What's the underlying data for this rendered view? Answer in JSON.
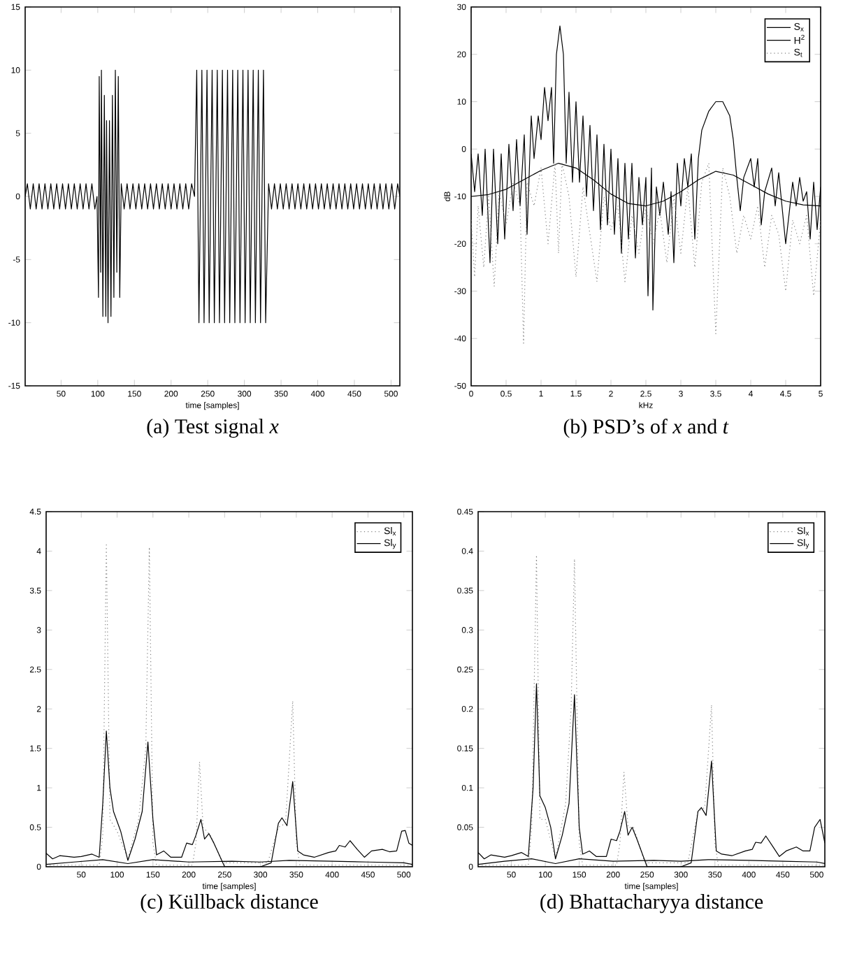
{
  "chart_data": [
    {
      "type": "line",
      "title": "(a) Test signal *x*",
      "xlabel": "time [samples]",
      "xlim": [
        1,
        512
      ],
      "ylim": [
        -15,
        15
      ],
      "xticks": [
        50,
        100,
        150,
        200,
        250,
        300,
        350,
        400,
        450,
        500
      ],
      "yticks": [
        -15,
        -10,
        -5,
        0,
        5,
        10,
        15
      ],
      "marker": "none",
      "series": [
        {
          "color": "#000000",
          "line_style": "solid",
          "x": [
            1,
            4,
            8,
            12,
            16,
            20,
            24,
            28,
            32,
            36,
            40,
            44,
            48,
            52,
            56,
            60,
            64,
            68,
            72,
            76,
            80,
            84,
            88,
            92,
            96,
            99,
            101,
            102,
            104,
            105,
            107,
            109,
            111,
            112,
            114,
            116,
            118,
            120,
            122,
            124,
            126,
            128,
            130,
            132,
            136,
            140,
            144,
            148,
            152,
            156,
            160,
            164,
            168,
            172,
            176,
            180,
            184,
            188,
            192,
            196,
            200,
            204,
            208,
            212,
            216,
            220,
            224,
            228,
            232,
            235,
            238,
            242,
            245,
            249,
            252,
            256,
            259,
            263,
            266,
            270,
            273,
            277,
            280,
            284,
            287,
            291,
            294,
            298,
            301,
            305,
            308,
            312,
            315,
            319,
            322,
            326,
            329,
            333,
            337,
            341,
            345,
            349,
            353,
            357,
            361,
            365,
            369,
            373,
            377,
            381,
            385,
            389,
            393,
            397,
            401,
            405,
            409,
            413,
            417,
            421,
            425,
            429,
            433,
            437,
            441,
            445,
            449,
            453,
            457,
            461,
            465,
            469,
            473,
            477,
            481,
            485,
            489,
            493,
            497,
            501,
            505,
            509,
            512
          ],
          "values": [
            0,
            1,
            -1,
            1,
            -1,
            1,
            -1,
            1,
            -1,
            1,
            -1,
            1,
            -1,
            1,
            -1,
            1,
            -1,
            1,
            -1,
            1,
            -1,
            1,
            -1,
            1,
            -1,
            0,
            -8,
            9.5,
            -6,
            10,
            -9.5,
            8,
            -9.5,
            6,
            -10,
            6,
            -9.5,
            8,
            -8,
            10,
            -6,
            9.5,
            -8,
            1,
            -1,
            1,
            -1,
            1,
            -1,
            1,
            -1,
            1,
            -1,
            1,
            -1,
            1,
            -1,
            1,
            -1,
            1,
            -1,
            1,
            -1,
            1,
            -1,
            1,
            -1,
            1,
            0,
            10,
            -10,
            10,
            -10,
            10,
            -10,
            10,
            -10,
            10,
            -10,
            10,
            -10,
            10,
            -10,
            10,
            -10,
            10,
            -10,
            10,
            -10,
            10,
            -10,
            10,
            -10,
            10,
            -10,
            10,
            -10,
            1,
            -1,
            1,
            -1,
            1,
            -1,
            1,
            -1,
            1,
            -1,
            1,
            -1,
            1,
            -1,
            1,
            -1,
            1,
            -1,
            1,
            -1,
            1,
            -1,
            1,
            -1,
            1,
            -1,
            1,
            -1,
            1,
            -1,
            1,
            -1,
            1,
            -1,
            1,
            -1,
            1,
            -1,
            1,
            -1,
            1,
            -1,
            1,
            -1,
            1,
            0
          ]
        }
      ]
    },
    {
      "type": "line",
      "title": "(b) PSD’s of *x* and *t*",
      "xlabel": "kHz",
      "ylabel": "dB",
      "xlim": [
        0,
        5
      ],
      "ylim": [
        -50,
        30
      ],
      "xticks": [
        0,
        0.5,
        1,
        1.5,
        2,
        2.5,
        3,
        3.5,
        4,
        4.5,
        5
      ],
      "yticks": [
        -50,
        -40,
        -30,
        -20,
        -10,
        0,
        10,
        20,
        30
      ],
      "legend": "top right",
      "marker": "none",
      "series": [
        {
          "name": "S$_{x}$",
          "color": "#000000",
          "line_style": "solid",
          "x": [
            0,
            0.05,
            0.1,
            0.16,
            0.2,
            0.27,
            0.32,
            0.38,
            0.43,
            0.48,
            0.54,
            0.6,
            0.65,
            0.7,
            0.76,
            0.8,
            0.86,
            0.9,
            0.96,
            1.0,
            1.05,
            1.1,
            1.15,
            1.18,
            1.22,
            1.27,
            1.32,
            1.36,
            1.4,
            1.45,
            1.5,
            1.55,
            1.6,
            1.65,
            1.7,
            1.75,
            1.8,
            1.85,
            1.9,
            1.95,
            2.0,
            2.05,
            2.1,
            2.15,
            2.2,
            2.25,
            2.3,
            2.35,
            2.4,
            2.45,
            2.5,
            2.53,
            2.58,
            2.6,
            2.65,
            2.7,
            2.75,
            2.82,
            2.86,
            2.9,
            2.95,
            3.0,
            3.05,
            3.1,
            3.15,
            3.2,
            3.25,
            3.3,
            3.4,
            3.5,
            3.6,
            3.7,
            3.75,
            3.8,
            3.85,
            3.9,
            4.0,
            4.05,
            4.1,
            4.15,
            4.2,
            4.3,
            4.35,
            4.4,
            4.5,
            4.6,
            4.65,
            4.7,
            4.75,
            4.8,
            4.85,
            4.9,
            4.95,
            5.0
          ],
          "values": [
            -1,
            -9,
            -1,
            -14,
            0,
            -24,
            0,
            -20,
            -1,
            -19,
            1,
            -13,
            2,
            -12,
            3,
            -18,
            7,
            -2,
            7,
            2,
            13,
            6,
            13,
            -3,
            20,
            26,
            20,
            -3,
            12,
            -7,
            10,
            -7,
            7,
            -10,
            5,
            -13,
            3,
            -17,
            1,
            -16,
            0,
            -18,
            -2,
            -22,
            -3,
            -19,
            -3,
            -23,
            -6,
            -16,
            -6,
            -31,
            -4,
            -34,
            -8,
            -14,
            -7,
            -18,
            -9,
            -24,
            -3,
            -12,
            -2,
            -8,
            -1,
            -19,
            -2,
            4,
            8,
            10,
            10,
            7,
            2,
            -6,
            -13,
            -6,
            -2,
            -8,
            -2,
            -16,
            -9,
            -4,
            -12,
            -5,
            -20,
            -7,
            -12,
            -6,
            -11,
            -9,
            -19,
            -7,
            -17,
            -8
          ]
        },
        {
          "name": "H$^{2}$",
          "color": "#000000",
          "line_style": "solid",
          "x": [
            0,
            0.25,
            0.5,
            0.75,
            1,
            1.25,
            1.5,
            1.75,
            2,
            2.25,
            2.5,
            2.75,
            3,
            3.25,
            3.5,
            3.75,
            4,
            4.25,
            4.5,
            4.75,
            5
          ],
          "values": [
            -10,
            -9.6,
            -8.5,
            -6.5,
            -4.5,
            -3,
            -4,
            -6.5,
            -9.5,
            -11.5,
            -12,
            -11,
            -9,
            -6.5,
            -4.7,
            -5.5,
            -7.5,
            -9.5,
            -11,
            -11.8,
            -12
          ]
        },
        {
          "name": "S$_{t}$",
          "color": "#808080",
          "line_style": "dotted",
          "x": [
            0,
            0.05,
            0.1,
            0.18,
            0.25,
            0.33,
            0.4,
            0.5,
            0.6,
            0.7,
            0.75,
            0.8,
            0.9,
            1.0,
            1.1,
            1.2,
            1.25,
            1.3,
            1.4,
            1.5,
            1.6,
            1.8,
            1.9,
            2.0,
            2.1,
            2.2,
            2.3,
            2.4,
            2.5,
            2.6,
            2.7,
            2.8,
            2.9,
            3.0,
            3.1,
            3.2,
            3.3,
            3.4,
            3.5,
            3.6,
            3.7,
            3.8,
            3.9,
            4.0,
            4.1,
            4.2,
            4.3,
            4.4,
            4.5,
            4.6,
            4.7,
            4.8,
            4.9,
            5.0
          ],
          "values": [
            -15,
            -27,
            -12,
            -25,
            -10,
            -29,
            -9,
            -16,
            -7,
            -12,
            -41,
            -7,
            -12,
            -4,
            -20,
            -3,
            -22,
            -3,
            -10,
            -27,
            -8,
            -28,
            -10,
            -17,
            -12,
            -28,
            -14,
            -22,
            -12,
            -20,
            -13,
            -24,
            -10,
            -22,
            -8,
            -25,
            -7,
            -3,
            -39,
            -4,
            -10,
            -22,
            -14,
            -19,
            -12,
            -25,
            -14,
            -18,
            -30,
            -15,
            -20,
            -14,
            -31,
            -15
          ]
        }
      ]
    },
    {
      "type": "line",
      "title": "(c) Küllback distance",
      "xlabel": "time [samples]",
      "xlim": [
        1,
        512
      ],
      "ylim": [
        0,
        4.5
      ],
      "xticks": [
        50,
        100,
        150,
        200,
        250,
        300,
        350,
        400,
        450,
        500
      ],
      "yticks": [
        0,
        0.5,
        1,
        1.5,
        2,
        2.5,
        3,
        3.5,
        4,
        4.5
      ],
      "legend": "top right",
      "marker": "none",
      "series": [
        {
          "name": "Sl$_{x}$",
          "color": "#808080",
          "line_style": "dotted",
          "x": [
            1,
            75,
            80,
            85,
            90,
            100,
            115,
            130,
            140,
            145,
            150,
            155,
            205,
            210,
            215,
            220,
            230,
            245,
            250,
            310,
            325,
            335,
            345,
            350,
            355,
            512
          ],
          "values": [
            0.02,
            0.02,
            0.4,
            4.1,
            0.6,
            0.45,
            0.1,
            0.6,
            1.5,
            4.05,
            0.3,
            0.02,
            0.02,
            0.3,
            1.33,
            0.5,
            0.4,
            0.1,
            0.05,
            0.05,
            0.5,
            0.55,
            2.1,
            0.3,
            0.02,
            0.02
          ]
        },
        {
          "name": "Sl$_{y}$",
          "color": "#000000",
          "line_style": "solid",
          "x": [
            1,
            10,
            20,
            40,
            50,
            65,
            75,
            80,
            85,
            90,
            95,
            105,
            115,
            125,
            135,
            143,
            150,
            155,
            165,
            175,
            190,
            197,
            205,
            210,
            217,
            222,
            228,
            235,
            250,
            300,
            315,
            325,
            330,
            337,
            345,
            352,
            360,
            375,
            395,
            405,
            410,
            418,
            425,
            435,
            445,
            455,
            470,
            480,
            490,
            497,
            502,
            507,
            512
          ],
          "values": [
            0.17,
            0.1,
            0.14,
            0.12,
            0.13,
            0.16,
            0.12,
            0.8,
            1.72,
            1.0,
            0.7,
            0.45,
            0.08,
            0.35,
            0.7,
            1.58,
            0.6,
            0.15,
            0.2,
            0.12,
            0.12,
            0.3,
            0.28,
            0.4,
            0.6,
            0.35,
            0.42,
            0.3,
            0,
            0,
            0.05,
            0.55,
            0.62,
            0.52,
            1.08,
            0.2,
            0.15,
            0.12,
            0.18,
            0.2,
            0.27,
            0.25,
            0.33,
            0.22,
            0.12,
            0.2,
            0.22,
            0.19,
            0.2,
            0.45,
            0.46,
            0.3,
            0.27
          ]
        },
        {
          "color": "#000000",
          "line_style": "solid",
          "x": [
            1,
            40,
            80,
            115,
            150,
            200,
            260,
            300,
            340,
            400,
            450,
            500,
            512
          ],
          "values": [
            0.03,
            0.06,
            0.09,
            0.04,
            0.09,
            0.06,
            0.07,
            0.06,
            0.08,
            0.07,
            0.06,
            0.05,
            0.03
          ]
        }
      ]
    },
    {
      "type": "line",
      "title": "(d) Bhattacharyya distance",
      "xlabel": "time [samples]",
      "xlim": [
        1,
        512
      ],
      "ylim": [
        0,
        0.45
      ],
      "xticks": [
        50,
        100,
        150,
        200,
        250,
        300,
        350,
        400,
        450,
        500
      ],
      "yticks": [
        0,
        0.05,
        0.1,
        0.15,
        0.2,
        0.25,
        0.3,
        0.35,
        0.4,
        0.45
      ],
      "legend": "top right",
      "marker": "none",
      "series": [
        {
          "name": "Sl$_{x}$",
          "color": "#808080",
          "line_style": "dotted",
          "x": [
            1,
            75,
            80,
            87,
            92,
            100,
            115,
            130,
            138,
            143,
            150,
            155,
            205,
            210,
            216,
            222,
            230,
            245,
            250,
            310,
            325,
            335,
            345,
            350,
            355,
            512
          ],
          "values": [
            0.002,
            0.002,
            0.05,
            0.395,
            0.06,
            0.06,
            0.01,
            0.08,
            0.2,
            0.39,
            0.03,
            0.002,
            0.002,
            0.03,
            0.12,
            0.05,
            0.05,
            0.01,
            0.005,
            0.005,
            0.07,
            0.075,
            0.205,
            0.03,
            0.002,
            0.002
          ]
        },
        {
          "name": "Sl$_{y}$",
          "color": "#000000",
          "line_style": "solid",
          "x": [
            1,
            10,
            20,
            40,
            50,
            65,
            75,
            82,
            87,
            92,
            100,
            108,
            115,
            125,
            135,
            143,
            150,
            155,
            165,
            175,
            190,
            197,
            205,
            210,
            217,
            222,
            228,
            235,
            250,
            300,
            315,
            325,
            330,
            337,
            345,
            352,
            360,
            375,
            395,
            405,
            410,
            418,
            425,
            435,
            445,
            455,
            470,
            480,
            490,
            497,
            505,
            512
          ],
          "values": [
            0.018,
            0.01,
            0.015,
            0.012,
            0.014,
            0.018,
            0.013,
            0.1,
            0.232,
            0.09,
            0.075,
            0.05,
            0.01,
            0.04,
            0.08,
            0.218,
            0.05,
            0.016,
            0.02,
            0.013,
            0.013,
            0.035,
            0.033,
            0.045,
            0.07,
            0.04,
            0.05,
            0.035,
            0,
            0,
            0.005,
            0.07,
            0.075,
            0.065,
            0.134,
            0.02,
            0.016,
            0.014,
            0.02,
            0.022,
            0.031,
            0.03,
            0.039,
            0.026,
            0.013,
            0.02,
            0.025,
            0.02,
            0.02,
            0.05,
            0.06,
            0.03
          ]
        },
        {
          "color": "#000000",
          "line_style": "solid",
          "x": [
            1,
            40,
            80,
            115,
            150,
            200,
            260,
            300,
            340,
            400,
            450,
            500,
            512
          ],
          "values": [
            0.003,
            0.007,
            0.01,
            0.004,
            0.01,
            0.007,
            0.008,
            0.007,
            0.009,
            0.008,
            0.007,
            0.006,
            0.004
          ]
        }
      ]
    }
  ]
}
